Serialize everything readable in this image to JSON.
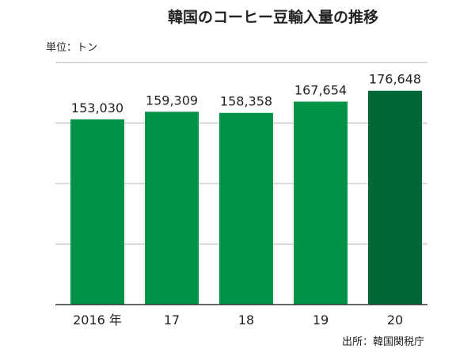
{
  "chart_data": {
    "type": "bar",
    "title": "韓国のコーヒー豆輸入量の推移",
    "unit_label": "単位：トン",
    "source_label": "出所：韓国関税庁",
    "categories": [
      "2016 年",
      "17",
      "18",
      "19",
      "20"
    ],
    "values": [
      153030,
      159309,
      158358,
      167654,
      176648
    ],
    "value_labels": [
      "153,030",
      "159,309",
      "158,358",
      "167,654",
      "176,648"
    ],
    "ylim": [
      0,
      200000
    ],
    "gridlines": [
      50000,
      100000,
      150000,
      200000
    ],
    "grid": true,
    "colors": {
      "bar": "#009245",
      "highlight_bar": "#006837",
      "grid": "#b3b3b3",
      "axis": "#333333",
      "text": "#222222"
    },
    "highlight_index": 4
  }
}
